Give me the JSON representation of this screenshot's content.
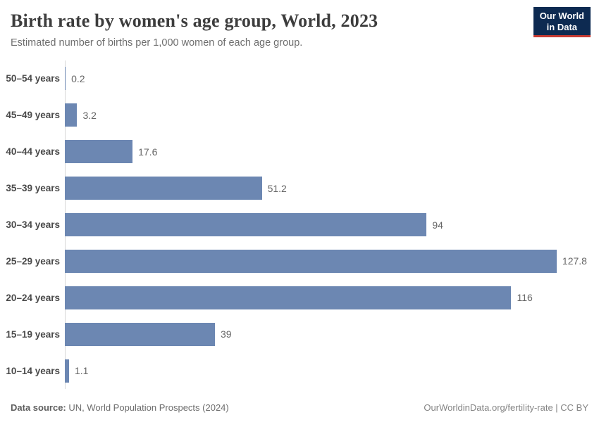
{
  "header": {
    "title": "Birth rate by women's age group, World, 2023",
    "subtitle": "Estimated number of births per 1,000 women of each age group.",
    "logo": {
      "line1": "Our World",
      "line2": "in Data",
      "bg_color": "#0d2a51",
      "accent_color": "#c73a32"
    }
  },
  "chart_data": {
    "type": "bar",
    "orientation": "horizontal",
    "title": "Birth rate by women's age group, World, 2023",
    "subtitle": "Estimated number of births per 1,000 women of each age group.",
    "categories": [
      "50–54 years",
      "45–49 years",
      "40–44 years",
      "35–39 years",
      "30–34 years",
      "25–29 years",
      "20–24 years",
      "15–19 years",
      "10–14 years"
    ],
    "values": [
      0.2,
      3.2,
      17.6,
      51.2,
      94,
      127.8,
      116,
      39,
      1.1
    ],
    "value_labels": [
      "0.2",
      "3.2",
      "17.6",
      "51.2",
      "94",
      "127.8",
      "116",
      "39",
      "1.1"
    ],
    "xlabel": "",
    "ylabel": "",
    "xlim": [
      0,
      138.8
    ],
    "grid": false,
    "legend": false,
    "bar_color": "#6c87b2",
    "axis_line_color": "#d8d8d8"
  },
  "footer": {
    "source_label": "Data source:",
    "source_text": " UN, World Population Prospects (2024)",
    "credit": "OurWorldinData.org/fertility-rate | CC BY"
  }
}
